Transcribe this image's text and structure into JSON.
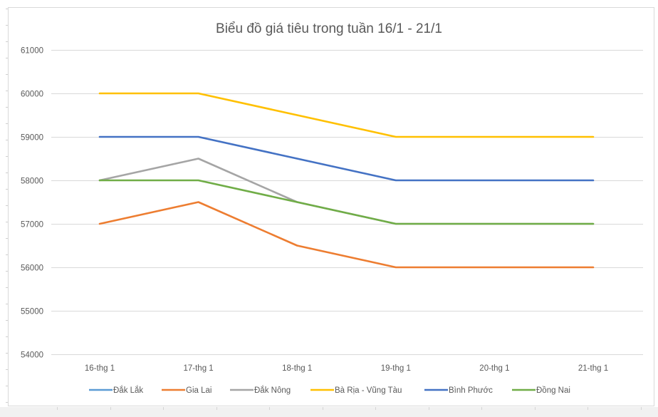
{
  "chart_data": {
    "type": "line",
    "title": "Biểu đồ giá tiêu trong tuần 16/1 - 21/1",
    "xlabel": "",
    "ylabel": "",
    "categories": [
      "16-thg 1",
      "17-thg 1",
      "18-thg 1",
      "19-thg 1",
      "20-thg 1",
      "21-thg 1"
    ],
    "ylim": [
      54000,
      61000
    ],
    "yticks": [
      54000,
      55000,
      56000,
      57000,
      58000,
      59000,
      60000,
      61000
    ],
    "grid": true,
    "legend_position": "bottom",
    "series": [
      {
        "name": "Đắk Lắk",
        "color": "#5B9BD5",
        "values": [
          null,
          null,
          null,
          null,
          null,
          null
        ]
      },
      {
        "name": "Gia Lai",
        "color": "#ED7D31",
        "values": [
          57000,
          57500,
          56500,
          56000,
          56000,
          56000
        ]
      },
      {
        "name": "Đắk Nông",
        "color": "#A5A5A5",
        "values": [
          58000,
          58500,
          57500,
          57000,
          57000,
          57000
        ]
      },
      {
        "name": "Bà Rịa - Vũng Tàu",
        "color": "#FFC000",
        "values": [
          60000,
          60000,
          59500,
          59000,
          59000,
          59000
        ]
      },
      {
        "name": "Bình Phước",
        "color": "#4472C4",
        "values": [
          59000,
          59000,
          58500,
          58000,
          58000,
          58000
        ]
      },
      {
        "name": "Đồng Nai",
        "color": "#70AD47",
        "values": [
          58000,
          58000,
          57500,
          57000,
          57000,
          57000
        ]
      }
    ]
  },
  "colors": {
    "gridline": "#d9d9d9",
    "text": "#595959",
    "frame": "#d9d9d9",
    "sheet_background": "#f1f1f1"
  }
}
